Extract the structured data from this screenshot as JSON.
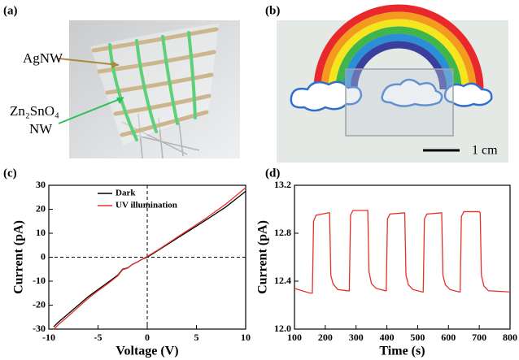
{
  "panel_labels": [
    "(a)",
    "(b)",
    "(c)",
    "(d)"
  ],
  "panel_a": {
    "labels": [
      "AgNW",
      "Zn₂SnO₄",
      "NW"
    ]
  },
  "panel_b": {
    "scale_bar": "1 cm"
  },
  "chart_data": [
    {
      "type": "line",
      "xlabel": "Voltage (V)",
      "ylabel": "Current (pA)",
      "x": [
        -9.5,
        -9,
        -8,
        -7,
        -6,
        -5,
        -4,
        -3,
        -2.5,
        -2,
        -1.5,
        -1,
        -0.5,
        0,
        1,
        2,
        3,
        4,
        5,
        6,
        8,
        10
      ],
      "series": [
        {
          "name": "Dark",
          "color": "#000000",
          "values": [
            -29,
            -27,
            -23.5,
            -20,
            -16.5,
            -13.5,
            -10.5,
            -7.5,
            -5,
            -4.5,
            -3,
            -2,
            -0.8,
            0,
            2.6,
            5.2,
            7.8,
            10.4,
            13,
            15.6,
            21,
            27.5
          ]
        },
        {
          "name": "UV illumination",
          "color": "#e8302a",
          "values": [
            -30,
            -28,
            -24.5,
            -20.8,
            -17.2,
            -14,
            -11,
            -7.8,
            -5.2,
            -4.6,
            -3,
            -2,
            -0.8,
            0.3,
            2.8,
            5.5,
            8.2,
            10.9,
            13.6,
            16.3,
            22.2,
            29
          ]
        }
      ],
      "xlim": [
        -10,
        10
      ],
      "xticks": [
        -10,
        -5,
        0,
        5,
        10
      ],
      "ylim": [
        -30,
        30
      ],
      "yticks": [
        -30,
        -20,
        -10,
        0,
        10,
        20,
        30
      ],
      "hlines": [
        0
      ],
      "vlines": [
        0
      ],
      "legend": "upper left"
    },
    {
      "type": "line",
      "xlabel": "Time (s)",
      "ylabel": "Current (pA)",
      "x": [
        100,
        150,
        158,
        162,
        170,
        210,
        214,
        218,
        225,
        240,
        270,
        278,
        282,
        290,
        335,
        338,
        342,
        350,
        365,
        395,
        398,
        402,
        410,
        455,
        458,
        462,
        470,
        485,
        515,
        518,
        522,
        530,
        575,
        578,
        582,
        590,
        605,
        635,
        638,
        642,
        650,
        700,
        703,
        707,
        715,
        730,
        800
      ],
      "series": [
        {
          "color": "#e8302a",
          "values": [
            12.34,
            12.3,
            12.3,
            12.9,
            12.95,
            12.97,
            12.97,
            12.45,
            12.38,
            12.33,
            12.32,
            12.32,
            12.95,
            12.99,
            12.99,
            12.99,
            12.48,
            12.38,
            12.34,
            12.32,
            12.32,
            12.92,
            12.96,
            12.97,
            12.97,
            12.45,
            12.37,
            12.33,
            12.31,
            12.31,
            12.92,
            12.96,
            12.97,
            12.97,
            12.45,
            12.37,
            12.33,
            12.31,
            12.31,
            12.94,
            12.98,
            12.98,
            12.97,
            12.45,
            12.36,
            12.32,
            12.31
          ]
        }
      ],
      "xlim": [
        100,
        800
      ],
      "xticks": [
        100,
        200,
        300,
        400,
        500,
        600,
        700,
        800
      ],
      "ylim": [
        12,
        13.2
      ],
      "yticks": [
        {
          "value": 12,
          "label": "12.0"
        },
        12.4,
        12.8,
        13.2
      ]
    }
  ]
}
